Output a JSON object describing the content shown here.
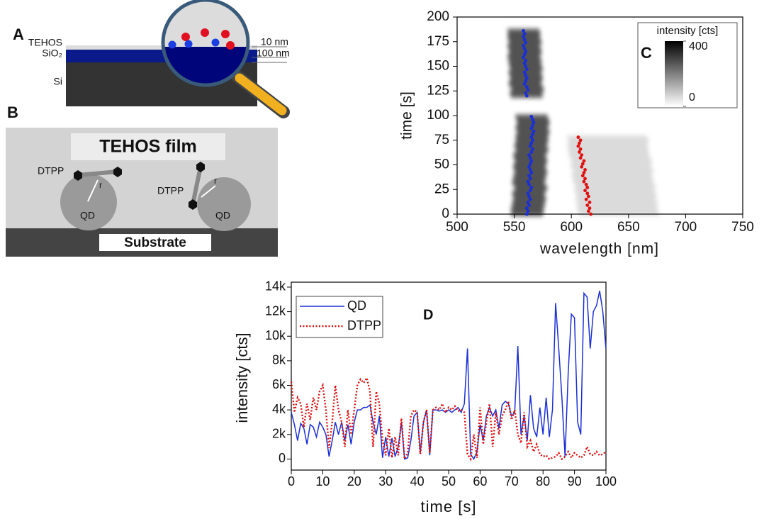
{
  "panel_labels": [
    "A",
    "B"
  ],
  "diagram_a": {
    "layers": [
      "TEHOS",
      "SiO₂",
      "Si"
    ],
    "thickness": [
      "10 nm",
      "100 nm"
    ]
  },
  "diagram_b": {
    "film": "TEHOS film",
    "dtpp": [
      "DTPP",
      "DTPP"
    ],
    "radius": [
      "r",
      "r"
    ],
    "qd": [
      "QD",
      "QD"
    ],
    "substrate": "Substrate"
  },
  "chart_data": [
    {
      "type": "scatter",
      "label": "C",
      "xlabel": "wavelength [nm]",
      "ylabel": "time [s]",
      "xlim": [
        500,
        750
      ],
      "xticks": [
        500,
        550,
        600,
        650,
        700,
        750
      ],
      "ylim": [
        0,
        200
      ],
      "yticks": [
        0,
        25,
        50,
        75,
        100,
        125,
        150,
        175,
        200
      ],
      "series": [
        {
          "color": "#1a2fd6",
          "x": [
            561,
            562,
            561,
            563,
            562,
            564,
            563,
            562,
            564,
            565,
            563,
            562,
            564,
            563,
            565,
            564,
            563,
            564,
            565,
            564,
            563,
            565,
            566,
            564,
            565,
            566,
            565,
            566,
            567,
            565,
            566,
            567,
            566,
            565,
            561,
            560,
            562,
            561,
            559,
            560,
            561,
            560,
            559,
            561,
            560,
            559,
            560,
            558,
            559,
            560,
            559,
            558,
            560,
            559,
            558,
            559,
            558
          ],
          "values": [
            0,
            3,
            6,
            9,
            12,
            15,
            18,
            21,
            24,
            27,
            30,
            33,
            36,
            39,
            42,
            45,
            48,
            51,
            54,
            57,
            60,
            63,
            66,
            69,
            72,
            75,
            78,
            81,
            84,
            87,
            90,
            93,
            96,
            99,
            120,
            123,
            126,
            129,
            132,
            135,
            138,
            141,
            144,
            147,
            150,
            153,
            156,
            159,
            162,
            165,
            168,
            171,
            174,
            177,
            180,
            183,
            186
          ]
        },
        {
          "color": "#e01010",
          "x": [
            617,
            615,
            616,
            614,
            616,
            613,
            615,
            614,
            612,
            614,
            613,
            611,
            612,
            610,
            611,
            612,
            609,
            610,
            611,
            608,
            609,
            607,
            608,
            606,
            607,
            608,
            606
          ],
          "values": [
            0,
            3,
            6,
            9,
            12,
            15,
            18,
            21,
            24,
            27,
            30,
            33,
            36,
            39,
            42,
            45,
            48,
            51,
            54,
            57,
            60,
            63,
            66,
            69,
            72,
            75,
            78
          ]
        }
      ],
      "colorbar": {
        "title": "intensity [cts]",
        "clim": [
          0,
          400
        ],
        "cticks": [
          0,
          400
        ]
      }
    },
    {
      "type": "line",
      "label": "D",
      "xlabel": "time [s]",
      "ylabel": "intensity [cts]",
      "xlim": [
        0,
        100
      ],
      "xticks": [
        0,
        10,
        20,
        30,
        40,
        50,
        60,
        70,
        80,
        90,
        100
      ],
      "ylim": [
        -900,
        14400
      ],
      "yticks": [
        0,
        {
          "value": 2000,
          "label": "2k"
        },
        {
          "value": 4000,
          "label": "4k"
        },
        {
          "value": 6000,
          "label": "6k"
        },
        {
          "value": 8000,
          "label": "8k"
        },
        {
          "value": 10000,
          "label": "10k"
        },
        {
          "value": 12000,
          "label": "12k"
        },
        {
          "value": 14000,
          "label": "14k"
        }
      ],
      "legend": "upper left",
      "x": [
        0,
        1,
        2,
        3,
        4,
        5,
        6,
        7,
        8,
        9,
        10,
        11,
        12,
        13,
        14,
        15,
        16,
        17,
        18,
        19,
        20,
        21,
        22,
        23,
        24,
        25,
        26,
        27,
        28,
        29,
        30,
        31,
        32,
        33,
        34,
        35,
        36,
        37,
        38,
        39,
        40,
        41,
        42,
        43,
        44,
        45,
        46,
        47,
        48,
        49,
        50,
        51,
        52,
        53,
        54,
        55,
        56,
        57,
        58,
        59,
        60,
        61,
        62,
        63,
        64,
        65,
        66,
        67,
        68,
        69,
        70,
        71,
        72,
        73,
        74,
        75,
        76,
        77,
        78,
        79,
        80,
        81,
        82,
        83,
        84,
        85,
        86,
        87,
        88,
        89,
        90,
        91,
        92,
        93,
        94,
        95,
        96,
        97,
        98,
        99,
        100
      ],
      "series": [
        {
          "name": "QD",
          "color": "#1a2fd6",
          "dash": "solid",
          "values": [
            3800,
            2800,
            1500,
            2900,
            2500,
            1200,
            2800,
            2600,
            1800,
            3000,
            2600,
            2000,
            200,
            1500,
            3000,
            2000,
            3000,
            1500,
            2800,
            1200,
            3000,
            4000,
            4000,
            4200,
            4200,
            4400,
            3000,
            2000,
            3500,
            100,
            1800,
            200,
            1700,
            200,
            1000,
            3000,
            0,
            100,
            1500,
            3500,
            3800,
            500,
            3000,
            4000,
            300,
            4000,
            4000,
            3900,
            4000,
            3800,
            4000,
            3800,
            4000,
            4200,
            3800,
            4500,
            9000,
            400,
            0,
            600,
            2800,
            1500,
            3500,
            4200,
            3500,
            4000,
            2500,
            4400,
            4700,
            4500,
            3500,
            3800,
            9200,
            2000,
            3500,
            1500,
            5200,
            2500,
            1800,
            4200,
            2000,
            5000,
            1800,
            4000,
            12700,
            9000,
            5000,
            200,
            7000,
            11800,
            11500,
            3000,
            2000,
            13500,
            13200,
            9000,
            12000,
            12500,
            13700,
            12000,
            9000
          ]
        },
        {
          "name": "DTPP",
          "color": "#e01010",
          "dash": "dotted",
          "values": [
            6300,
            3800,
            5000,
            4500,
            2600,
            4500,
            3200,
            5000,
            4000,
            5500,
            6000,
            4000,
            900,
            3000,
            6000,
            4000,
            3000,
            1000,
            4000,
            2000,
            4000,
            6000,
            6500,
            6200,
            6600,
            5500,
            1000,
            5500,
            4500,
            1500,
            300,
            2500,
            100,
            1800,
            300,
            3300,
            0,
            500,
            3500,
            4000,
            3800,
            400,
            3000,
            4000,
            500,
            4000,
            4200,
            4000,
            4500,
            3800,
            4200,
            4000,
            4300,
            3900,
            4000,
            3800,
            400,
            0,
            2000,
            100,
            4200,
            1200,
            3000,
            4500,
            1000,
            3800,
            2000,
            3500,
            4000,
            4700,
            3200,
            4000,
            2000,
            1300,
            3800,
            1000,
            1500,
            600,
            1200,
            400,
            200,
            300,
            0,
            100,
            200,
            500,
            0,
            200,
            600,
            100,
            500,
            300,
            100,
            300,
            1000,
            400,
            300,
            600,
            300,
            400,
            600
          ]
        }
      ]
    }
  ]
}
